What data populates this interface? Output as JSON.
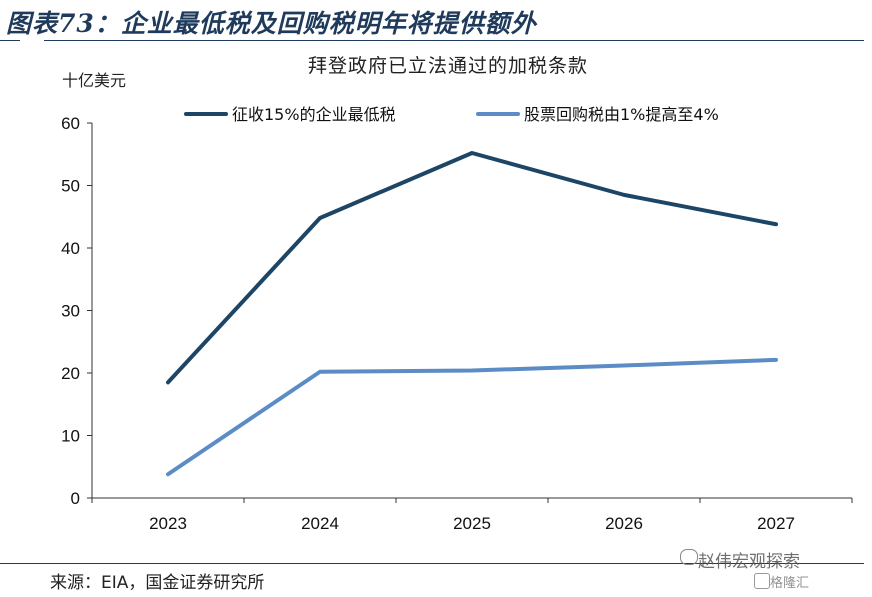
{
  "figure": {
    "title": "图表73：企业最低税及回购税明年将提供额外",
    "source": "来源：EIA，国金证券研究所",
    "watermark": "赵伟宏观探索",
    "watermark2": "格隆汇"
  },
  "chart_data": {
    "type": "line",
    "title": "拜登政府已立法通过的加税条款",
    "ylabel": "十亿美元",
    "xlabel": "",
    "categories": [
      "2023",
      "2024",
      "2025",
      "2026",
      "2027"
    ],
    "ylim": [
      0,
      60
    ],
    "yticks": [
      0,
      10,
      20,
      30,
      40,
      50,
      60
    ],
    "grid": false,
    "legend_position": "top",
    "series": [
      {
        "name": "征收15%的企业最低税",
        "values": [
          18.5,
          44.8,
          55.2,
          48.5,
          43.8
        ],
        "color": "#1d4566"
      },
      {
        "name": "股票回购税由1%提高至4%",
        "values": [
          3.8,
          20.2,
          20.4,
          21.2,
          22.1
        ],
        "color": "#5b8cc6"
      }
    ]
  }
}
